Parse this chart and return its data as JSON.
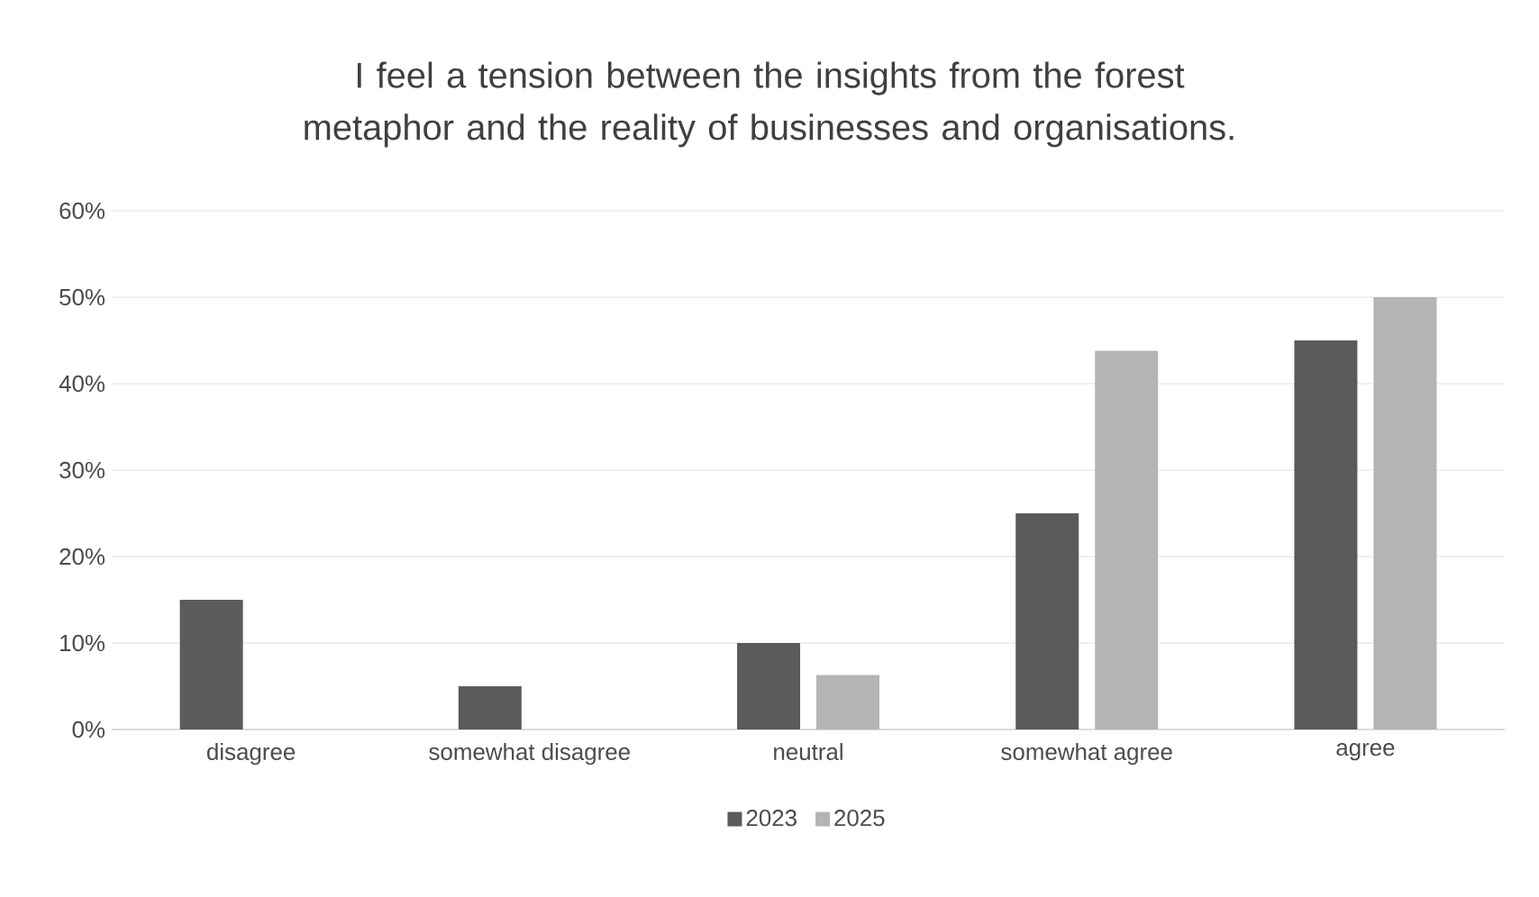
{
  "chart_data": {
    "type": "bar",
    "title": "I feel a tension between the insights from the forest metaphor and the reality of businesses and organisations.",
    "categories": [
      "disagree",
      "somewhat disagree",
      "neutral",
      "somewhat agree",
      "agree"
    ],
    "series": [
      {
        "name": "2023",
        "color": "#5a5c5a",
        "values": [
          15,
          5,
          10,
          25,
          45
        ]
      },
      {
        "name": "2025",
        "color": "#b4b4b4",
        "values": [
          0,
          0,
          6.3,
          43.8,
          50
        ]
      }
    ],
    "ylim": [
      0,
      60
    ],
    "yticks": [
      {
        "value": 0,
        "label": "0%"
      },
      {
        "value": 10,
        "label": "10%"
      },
      {
        "value": 20,
        "label": "20%"
      },
      {
        "value": 30,
        "label": "30%"
      },
      {
        "value": 40,
        "label": "40%"
      },
      {
        "value": 50,
        "label": "50%"
      },
      {
        "value": 60,
        "label": "60%"
      }
    ],
    "grid": "y",
    "legend": "bottom"
  }
}
